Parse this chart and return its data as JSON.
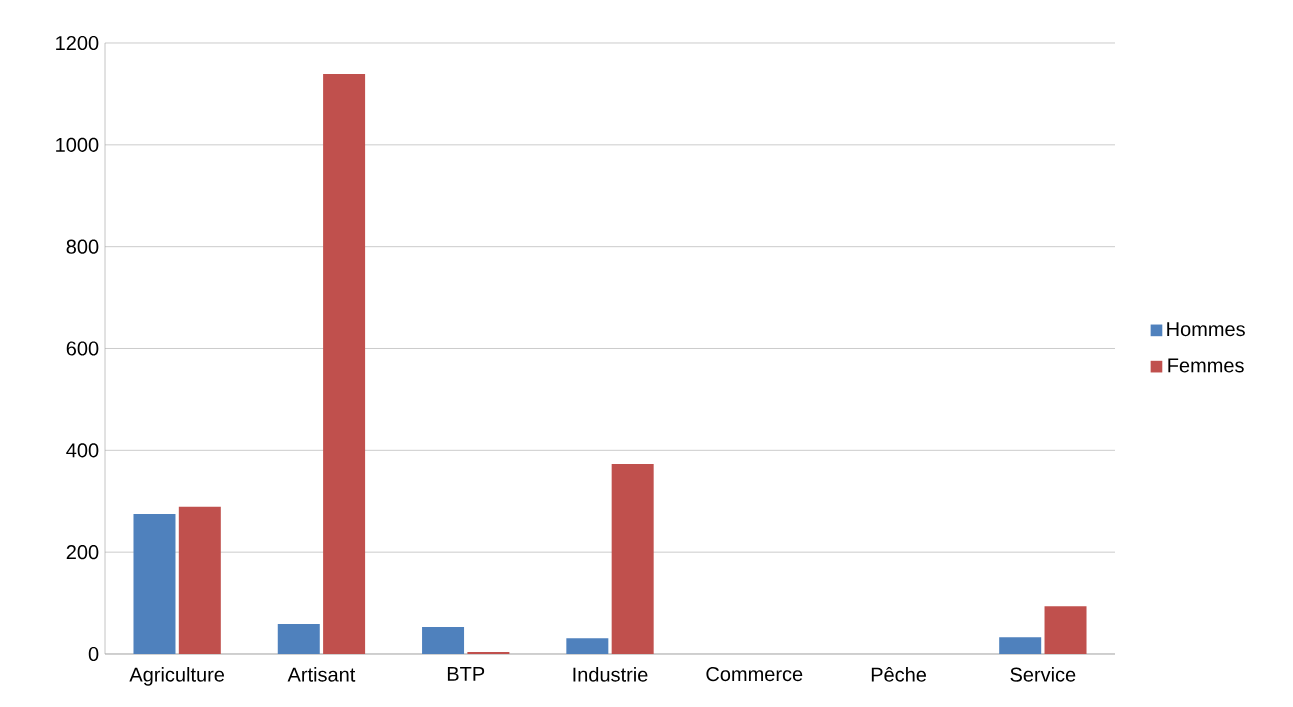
{
  "chart_data": {
    "type": "bar",
    "categories": [
      "Agriculture",
      "Artisant",
      "BTP",
      "Industrie",
      "Commerce",
      "Pêche",
      "Service"
    ],
    "series": [
      {
        "name": "Hommes",
        "color": "#4f81bd",
        "values": [
          275,
          59,
          53,
          31,
          0,
          0,
          33
        ]
      },
      {
        "name": "Femmes",
        "color": "#c0504d",
        "values": [
          289,
          1139,
          4,
          373,
          0,
          0,
          94
        ]
      }
    ],
    "ylim": [
      0,
      1200
    ],
    "yticks": [
      0,
      200,
      400,
      600,
      800,
      1000,
      1200
    ],
    "grid": "y",
    "legend": "right"
  }
}
